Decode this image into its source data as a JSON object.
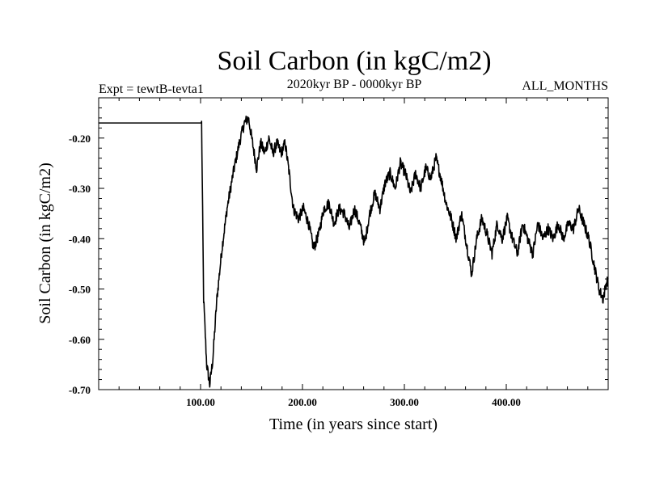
{
  "chart_data": {
    "type": "line",
    "title": "Soil Carbon (in kgC/m2)",
    "subtitle": "2020kyr BP - 0000kyr BP",
    "left_label": "Expt = tewtB-tevta1",
    "right_label": "ALL_MONTHS",
    "xlabel": "Time (in years since start)",
    "ylabel": "Soil Carbon (in kgC/m2)",
    "xlim": [
      0,
      500
    ],
    "ylim": [
      -0.7,
      -0.12
    ],
    "x_major_ticks": [
      100,
      200,
      300,
      400
    ],
    "x_tick_labels": [
      "100.00",
      "200.00",
      "300.00",
      "400.00"
    ],
    "y_major_ticks": [
      -0.2,
      -0.3,
      -0.4,
      -0.5,
      -0.6,
      -0.7
    ],
    "y_tick_labels": [
      "-0.20",
      "-0.30",
      "-0.40",
      "-0.50",
      "-0.60",
      "-0.70"
    ],
    "series": [
      {
        "name": "tewtB-tevta1",
        "color": "#000000",
        "anchors": [
          [
            0,
            -0.17
          ],
          [
            100,
            -0.17
          ],
          [
            101,
            -0.17
          ],
          [
            103,
            -0.52
          ],
          [
            106,
            -0.65
          ],
          [
            109,
            -0.69
          ],
          [
            112,
            -0.64
          ],
          [
            116,
            -0.52
          ],
          [
            121,
            -0.42
          ],
          [
            126,
            -0.34
          ],
          [
            132,
            -0.27
          ],
          [
            138,
            -0.21
          ],
          [
            143,
            -0.17
          ],
          [
            147,
            -0.16
          ],
          [
            151,
            -0.21
          ],
          [
            155,
            -0.26
          ],
          [
            159,
            -0.21
          ],
          [
            163,
            -0.23
          ],
          [
            167,
            -0.2
          ],
          [
            171,
            -0.23
          ],
          [
            175,
            -0.21
          ],
          [
            179,
            -0.23
          ],
          [
            183,
            -0.21
          ],
          [
            187,
            -0.27
          ],
          [
            191,
            -0.34
          ],
          [
            196,
            -0.36
          ],
          [
            201,
            -0.34
          ],
          [
            206,
            -0.37
          ],
          [
            211,
            -0.42
          ],
          [
            216,
            -0.39
          ],
          [
            221,
            -0.34
          ],
          [
            226,
            -0.33
          ],
          [
            231,
            -0.37
          ],
          [
            236,
            -0.34
          ],
          [
            241,
            -0.35
          ],
          [
            246,
            -0.38
          ],
          [
            251,
            -0.34
          ],
          [
            256,
            -0.37
          ],
          [
            261,
            -0.41
          ],
          [
            266,
            -0.35
          ],
          [
            271,
            -0.31
          ],
          [
            276,
            -0.34
          ],
          [
            281,
            -0.29
          ],
          [
            286,
            -0.27
          ],
          [
            291,
            -0.3
          ],
          [
            296,
            -0.25
          ],
          [
            301,
            -0.27
          ],
          [
            306,
            -0.31
          ],
          [
            311,
            -0.27
          ],
          [
            316,
            -0.3
          ],
          [
            321,
            -0.26
          ],
          [
            326,
            -0.28
          ],
          [
            331,
            -0.24
          ],
          [
            336,
            -0.28
          ],
          [
            341,
            -0.33
          ],
          [
            346,
            -0.36
          ],
          [
            351,
            -0.4
          ],
          [
            356,
            -0.35
          ],
          [
            361,
            -0.41
          ],
          [
            366,
            -0.47
          ],
          [
            371,
            -0.4
          ],
          [
            376,
            -0.36
          ],
          [
            381,
            -0.39
          ],
          [
            386,
            -0.43
          ],
          [
            391,
            -0.37
          ],
          [
            396,
            -0.4
          ],
          [
            401,
            -0.36
          ],
          [
            406,
            -0.4
          ],
          [
            411,
            -0.43
          ],
          [
            416,
            -0.37
          ],
          [
            421,
            -0.4
          ],
          [
            426,
            -0.43
          ],
          [
            431,
            -0.37
          ],
          [
            436,
            -0.4
          ],
          [
            441,
            -0.38
          ],
          [
            446,
            -0.4
          ],
          [
            451,
            -0.37
          ],
          [
            456,
            -0.4
          ],
          [
            461,
            -0.37
          ],
          [
            466,
            -0.38
          ],
          [
            471,
            -0.34
          ],
          [
            476,
            -0.37
          ],
          [
            481,
            -0.4
          ],
          [
            486,
            -0.45
          ],
          [
            491,
            -0.5
          ],
          [
            495,
            -0.52
          ],
          [
            498,
            -0.49
          ],
          [
            500,
            -0.48
          ]
        ]
      }
    ]
  }
}
